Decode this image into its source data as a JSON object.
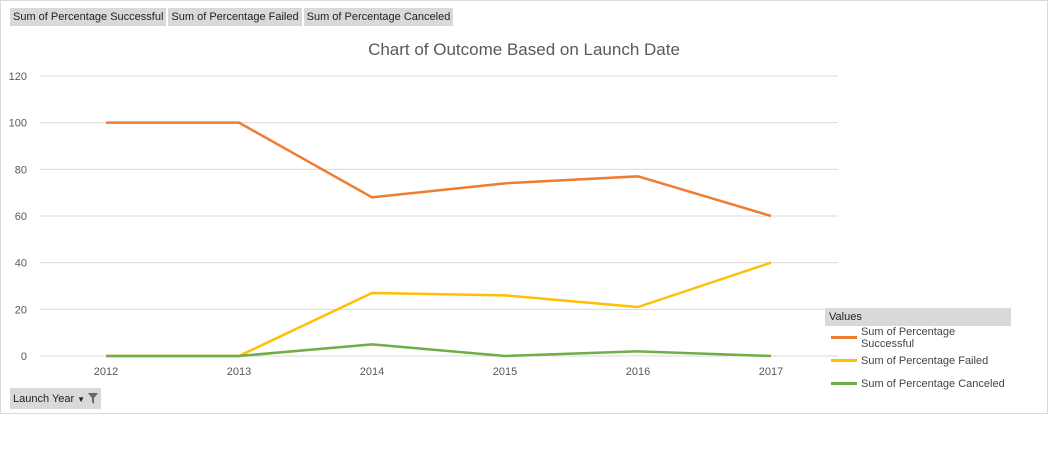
{
  "field_buttons": [
    "Sum of Percentage Successful",
    "Sum of Percentage Failed",
    "Sum of Percentage Canceled"
  ],
  "axis_field_button": "Launch Year",
  "legend": {
    "title": "Values",
    "placement": "right"
  },
  "chart_data": {
    "type": "line",
    "title": "Chart of Outcome Based on Launch Date",
    "xlabel": "",
    "ylabel": "",
    "categories": [
      "2012",
      "2013",
      "2014",
      "2015",
      "2016",
      "2017"
    ],
    "ylim": [
      0,
      120
    ],
    "yticks": [
      0,
      20,
      40,
      60,
      80,
      100,
      120
    ],
    "grid": true,
    "series": [
      {
        "name": "Sum of Percentage Successful",
        "color": "#ed7d31",
        "values": [
          100,
          100,
          68,
          74,
          77,
          60
        ]
      },
      {
        "name": "Sum of Percentage Failed",
        "color": "#ffc000",
        "values": [
          0,
          0,
          27,
          26,
          21,
          40
        ]
      },
      {
        "name": "Sum of Percentage Canceled",
        "color": "#70ad47",
        "values": [
          0,
          0,
          5,
          0,
          2,
          0
        ]
      }
    ]
  }
}
